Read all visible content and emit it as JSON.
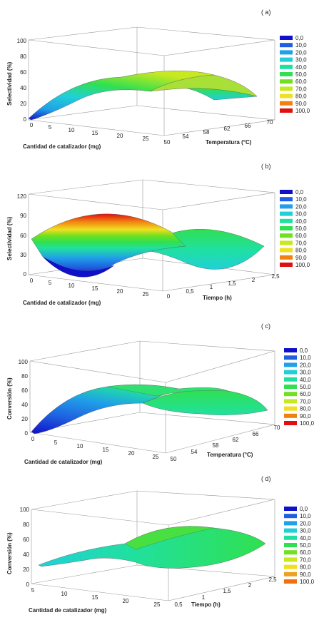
{
  "figure": {
    "panels": [
      {
        "label": "( a)",
        "zlabel": "Selectividad (%)",
        "xlabel": "Cantidad de catalizador (mg)",
        "ylabel": "Temperatura (°C)",
        "zticks": [
          "0",
          "20",
          "40",
          "60",
          "80",
          "100"
        ],
        "xticks": [
          "0",
          "5",
          "10",
          "15",
          "20",
          "25"
        ],
        "yticks": [
          "50",
          "54",
          "58",
          "62",
          "66",
          "70"
        ],
        "legend": [
          "0,0",
          "10,0",
          "20,0",
          "30,0",
          "40,0",
          "50,0",
          "60,0",
          "70,0",
          "80,0",
          "90,0",
          "100,0"
        ]
      },
      {
        "label": "( b)",
        "zlabel": "Selectividad (%)",
        "xlabel": "Cantidad de catalizador (mg)",
        "ylabel": "Tiempo (h)",
        "zticks": [
          "0",
          "30",
          "60",
          "90",
          "120"
        ],
        "xticks": [
          "0",
          "5",
          "10",
          "15",
          "20",
          "25"
        ],
        "yticks": [
          "0",
          "0,5",
          "1",
          "1,5",
          "2",
          "2,5"
        ],
        "legend": [
          "0,0",
          "10,0",
          "20,0",
          "30,0",
          "40,0",
          "50,0",
          "60,0",
          "70,0",
          "80,0",
          "90,0",
          "100,0"
        ]
      },
      {
        "label": "( c)",
        "zlabel": "Conversión (%)",
        "xlabel": "Cantidad de catalizador (mg)",
        "ylabel": "Temperatura (°C)",
        "zticks": [
          "0",
          "20",
          "40",
          "60",
          "80",
          "100"
        ],
        "xticks": [
          "0",
          "5",
          "10",
          "15",
          "20",
          "25"
        ],
        "yticks": [
          "50",
          "54",
          "58",
          "62",
          "66",
          "70"
        ],
        "legend": [
          "0,0",
          "10,0",
          "20,0",
          "30,0",
          "40,0",
          "50,0",
          "60,0",
          "70,0",
          "80,0",
          "90,0",
          "100,0"
        ]
      },
      {
        "label": "( d)",
        "zlabel": "Conversión (%)",
        "xlabel": "Cantidad de catalizador (mg)",
        "ylabel": "Tiempo (h)",
        "zticks": [
          "0",
          "20",
          "40",
          "60",
          "80",
          "100"
        ],
        "xticks": [
          "5",
          "10",
          "15",
          "20",
          "25"
        ],
        "yticks": [
          "0,5",
          "1",
          "1,5",
          "2",
          "2,5"
        ],
        "legend": [
          "0,0",
          "10,0",
          "20,0",
          "30,0",
          "40,0",
          "50,0",
          "60,0",
          "70,0",
          "80,0",
          "90,0",
          "100,0"
        ]
      }
    ],
    "colors": [
      "#1010c8",
      "#1f5fe0",
      "#20a0e8",
      "#20d0d8",
      "#20e0a0",
      "#30e050",
      "#70e020",
      "#c8e820",
      "#f0e020",
      "#f08010",
      "#e01010"
    ],
    "legend_colors_d": [
      "#1010c8",
      "#1f5fe0",
      "#20a0e8",
      "#20d0d8",
      "#20e0a0",
      "#30e050",
      "#70e020",
      "#c8e820",
      "#f0e020",
      "#f0a020",
      "#f07010"
    ]
  },
  "chart_data": [
    {
      "type": "surface",
      "title": "( a)",
      "xlabel": "Cantidad de catalizador (mg)",
      "ylabel": "Temperatura (°C)",
      "zlabel": "Selectividad (%)",
      "xlim": [
        0,
        25
      ],
      "ylim": [
        50,
        70
      ],
      "zlim": [
        0,
        100
      ],
      "x": [
        0,
        5,
        10,
        15,
        20,
        25
      ],
      "y": [
        50,
        54,
        58,
        62,
        66,
        70
      ],
      "z_front_edge": [
        0,
        18,
        32,
        40,
        44,
        45
      ],
      "z_back_edge": [
        45,
        55,
        60,
        58,
        50,
        38
      ],
      "z_max": 62,
      "color_scale": [
        0,
        10,
        20,
        30,
        40,
        50,
        60,
        70,
        80,
        90,
        100
      ]
    },
    {
      "type": "surface",
      "title": "( b)",
      "xlabel": "Cantidad de catalizador (mg)",
      "ylabel": "Tiempo (h)",
      "zlabel": "Selectividad (%)",
      "xlim": [
        0,
        25
      ],
      "ylim": [
        0,
        2.5
      ],
      "zlim": [
        0,
        120
      ],
      "x": [
        0,
        5,
        10,
        15,
        20,
        25
      ],
      "y": [
        0,
        0.5,
        1,
        1.5,
        2,
        2.5
      ],
      "z_front_edge": [
        55,
        20,
        2,
        10,
        40,
        62
      ],
      "z_back_edge": [
        62,
        88,
        100,
        95,
        70,
        45
      ],
      "z_right_edge": [
        62,
        58,
        35,
        40,
        58,
        50
      ],
      "z_max": 100,
      "z_min": 0,
      "color_scale": [
        0,
        10,
        20,
        30,
        40,
        50,
        60,
        70,
        80,
        90,
        100
      ]
    },
    {
      "type": "surface",
      "title": "( c)",
      "xlabel": "Cantidad de catalizador (mg)",
      "ylabel": "Temperatura (°C)",
      "zlabel": "Conversión (%)",
      "xlim": [
        0,
        25
      ],
      "ylim": [
        50,
        70
      ],
      "zlim": [
        0,
        100
      ],
      "x": [
        0,
        5,
        10,
        15,
        20,
        25
      ],
      "y": [
        50,
        54,
        58,
        62,
        66,
        70
      ],
      "z_front_edge": [
        0,
        15,
        28,
        35,
        38,
        40
      ],
      "z_back_edge": [
        38,
        45,
        50,
        52,
        48,
        40
      ],
      "z_max": 52,
      "color_scale": [
        0,
        10,
        20,
        30,
        40,
        50,
        60,
        70,
        80,
        90,
        100
      ]
    },
    {
      "type": "surface",
      "title": "( d)",
      "xlabel": "Cantidad de catalizador (mg)",
      "ylabel": "Tiempo (h)",
      "zlabel": "Conversión (%)",
      "xlim": [
        5,
        25
      ],
      "ylim": [
        0.5,
        2.5
      ],
      "zlim": [
        0,
        100
      ],
      "x": [
        5,
        10,
        15,
        20,
        25
      ],
      "y": [
        0.5,
        1,
        1.5,
        2,
        2.5
      ],
      "z_front_edge": [
        25,
        32,
        38,
        42,
        45
      ],
      "z_back_edge": [
        42,
        50,
        55,
        52,
        48
      ],
      "z_max": 58,
      "color_scale": [
        0,
        10,
        20,
        30,
        40,
        50,
        60,
        70,
        80,
        90,
        100
      ]
    }
  ]
}
